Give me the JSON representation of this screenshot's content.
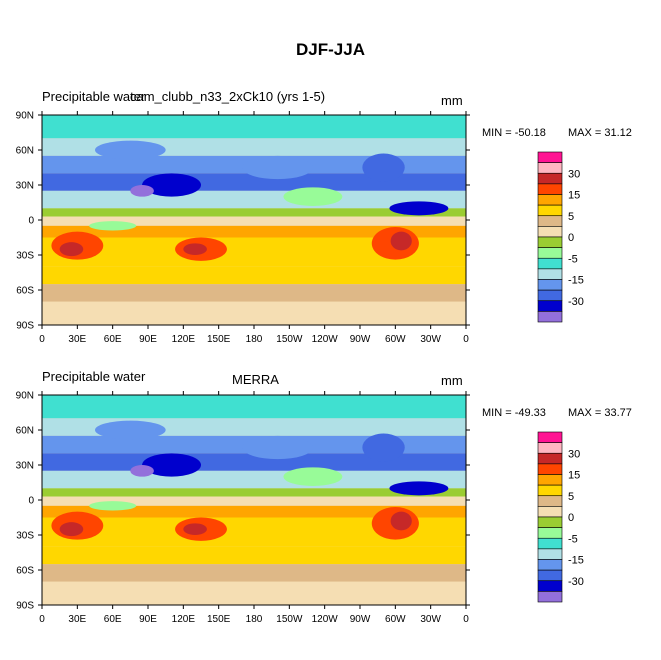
{
  "title": "DJF-JJA",
  "chart_data": [
    {
      "type": "heatmap",
      "variable_label": "Precipitable water",
      "case_label": "cam_clubb_n33_2xCk10 (yrs 1-5)",
      "units": "mm",
      "min_label": "MIN = -50.18",
      "max_label": "MAX =  31.12",
      "x_ticks": [
        "0",
        "30E",
        "60E",
        "90E",
        "120E",
        "150E",
        "180",
        "150W",
        "120W",
        "90W",
        "60W",
        "30W",
        "0"
      ],
      "y_ticks": [
        "90N",
        "60N",
        "30N",
        "0",
        "30S",
        "60S",
        "90S"
      ],
      "xlim": [
        0,
        360
      ],
      "ylim": [
        -90,
        90
      ],
      "colorbar_levels": [
        -35,
        -30,
        -25,
        -20,
        -15,
        -10,
        -5,
        -2.5,
        0,
        2.5,
        5,
        10,
        15,
        20,
        25,
        30,
        35
      ],
      "colorbar_labels": [
        "30",
        "15",
        "5",
        "0",
        "-5",
        "-15",
        "-30"
      ]
    },
    {
      "type": "heatmap",
      "variable_label": "Precipitable water",
      "case_label": "MERRA",
      "units": "mm",
      "min_label": "MIN = -49.33",
      "max_label": "MAX =  33.77",
      "x_ticks": [
        "0",
        "30E",
        "60E",
        "90E",
        "120E",
        "150E",
        "180",
        "150W",
        "120W",
        "90W",
        "60W",
        "30W",
        "0"
      ],
      "y_ticks": [
        "90N",
        "60N",
        "30N",
        "0",
        "30S",
        "60S",
        "90S"
      ],
      "xlim": [
        0,
        360
      ],
      "ylim": [
        -90,
        90
      ],
      "colorbar_levels": [
        -35,
        -30,
        -25,
        -20,
        -15,
        -10,
        -5,
        -2.5,
        0,
        2.5,
        5,
        10,
        15,
        20,
        25,
        30,
        35
      ],
      "colorbar_labels": [
        "30",
        "15",
        "5",
        "0",
        "-5",
        "-15",
        "-30"
      ]
    }
  ],
  "colorbar_colors": [
    "#ff1493",
    "#ffb6c1",
    "#c62828",
    "#ff4500",
    "#ffa500",
    "#ffd700",
    "#deb887",
    "#f5deb3",
    "#9acd32",
    "#98fb98",
    "#40e0d0",
    "#b0e0e6",
    "#6495ed",
    "#4169e1",
    "#0000cd",
    "#9370db"
  ]
}
